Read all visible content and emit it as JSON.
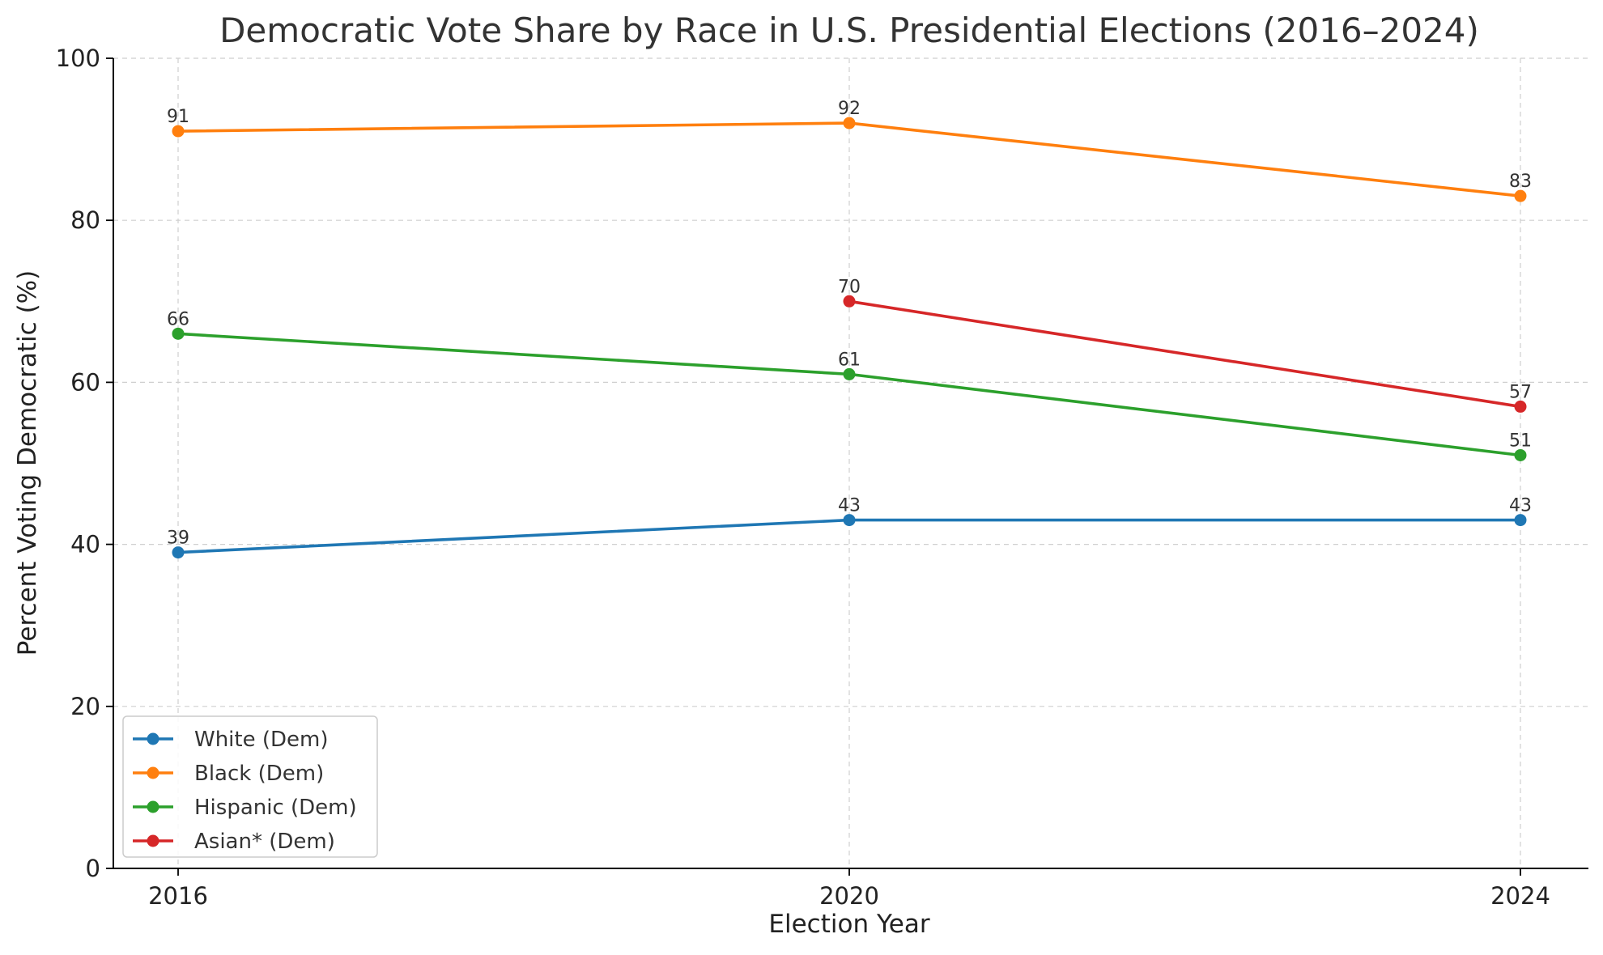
{
  "chart_data": {
    "type": "line",
    "title": "Democratic Vote Share by Race in U.S. Presidential Elections (2016–2024)",
    "xlabel": "Election Year",
    "ylabel": "Percent Voting Democratic (%)",
    "x": [
      "2016",
      "2020",
      "2024"
    ],
    "ylim": [
      0,
      100
    ],
    "yticks": [
      0,
      20,
      40,
      60,
      80,
      100
    ],
    "grid": true,
    "legend_position": "lower-left",
    "series": [
      {
        "name": "White (Dem)",
        "color": "#1f77b4",
        "values": [
          39,
          43,
          43
        ]
      },
      {
        "name": "Black (Dem)",
        "color": "#ff7f0e",
        "values": [
          91,
          92,
          83
        ]
      },
      {
        "name": "Hispanic (Dem)",
        "color": "#2ca02c",
        "values": [
          66,
          61,
          51
        ]
      },
      {
        "name": "Asian* (Dem)",
        "color": "#d62728",
        "values": [
          null,
          70,
          57
        ]
      }
    ]
  }
}
